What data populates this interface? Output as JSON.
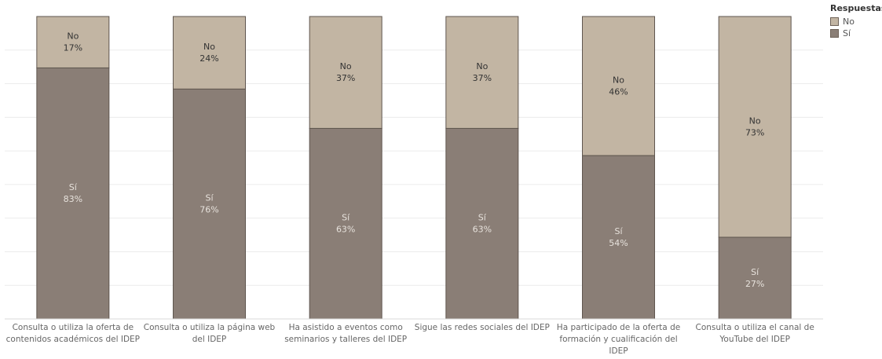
{
  "chart_data": {
    "type": "bar",
    "stacked": true,
    "percent_stacked": true,
    "categories": [
      "Consulta o utiliza la oferta de contenidos académicos del IDEP",
      "Consulta o utiliza la página web del IDEP",
      "Ha asistido a eventos como seminarios y talleres del IDEP",
      "Sigue las redes sociales del IDEP",
      "Ha participado de la oferta de formación y cualificación del IDEP",
      "Consulta o utiliza el canal de YouTube del IDEP"
    ],
    "category_label_lines": [
      [
        "Consulta o utiliza la oferta de",
        "contenidos académicos del IDEP"
      ],
      [
        "Consulta o utiliza la página web",
        "del IDEP"
      ],
      [
        "Ha asistido a eventos como",
        "seminarios y talleres del IDEP"
      ],
      [
        "Sigue las redes sociales del IDEP"
      ],
      [
        "Ha participado de la oferta de",
        "formación y cualificación del",
        "IDEP"
      ],
      [
        "Consulta o utiliza el canal de",
        "YouTube del IDEP"
      ]
    ],
    "series": [
      {
        "name": "Sí",
        "values": [
          83,
          76,
          63,
          63,
          54,
          27
        ],
        "color": "#8a7e76"
      },
      {
        "name": "No",
        "values": [
          17,
          24,
          37,
          37,
          46,
          73
        ],
        "color": "#c2b5a3"
      }
    ],
    "ylim": [
      0,
      100
    ],
    "value_format": "percent",
    "grid": true,
    "legend": {
      "title": "Respuestas",
      "position": "top-right",
      "entries": [
        "No",
        "Sí"
      ]
    }
  },
  "colors": {
    "si": "#8a7e76",
    "no": "#c2b5a3",
    "outline": "#5f564f",
    "grid": "#ececec",
    "label_dark": "#333333",
    "label_light": "#e7e2dc",
    "axis_text": "#666666"
  }
}
